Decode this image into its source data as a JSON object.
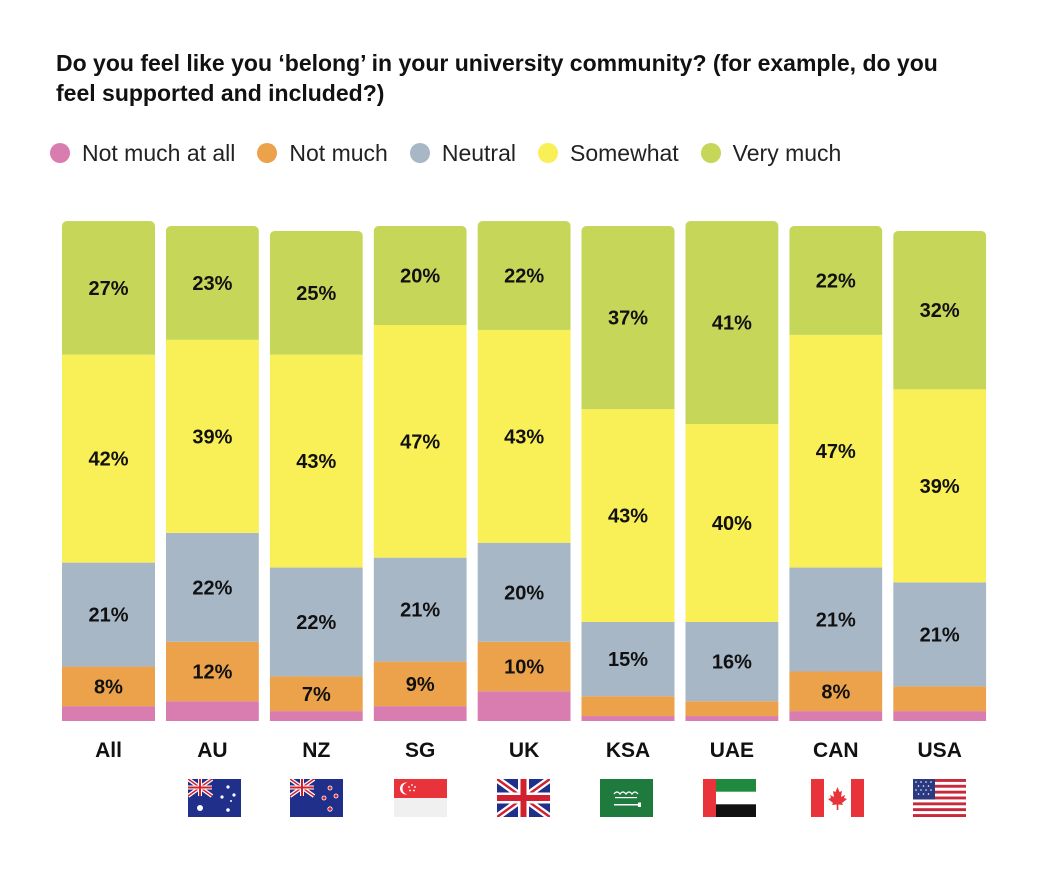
{
  "title": "Do you feel like you ‘belong’ in your university community? (for example, do you feel supported and included?)",
  "chart_data": {
    "type": "bar",
    "stacked": true,
    "title": "Do you feel like you ‘belong’ in your university community? (for example, do you feel supported and included?)",
    "xlabel": "",
    "ylabel": "",
    "ylim": [
      0,
      100
    ],
    "grid": false,
    "legend_position": "top",
    "categories": [
      "All",
      "AU",
      "NZ",
      "SG",
      "UK",
      "KSA",
      "UAE",
      "CAN",
      "USA"
    ],
    "series": [
      {
        "name": "Not much at all",
        "color": "#d97cb0",
        "values": [
          3,
          4,
          2,
          3,
          6,
          1,
          1,
          2,
          2
        ],
        "labels": [
          "",
          "",
          "",
          "",
          "",
          "",
          "",
          "",
          ""
        ]
      },
      {
        "name": "Not much",
        "color": "#eba24a",
        "values": [
          8,
          12,
          7,
          9,
          10,
          4,
          3,
          8,
          5
        ],
        "labels": [
          "8%",
          "12%",
          "7%",
          "9%",
          "10%",
          "",
          "",
          "8%",
          ""
        ]
      },
      {
        "name": "Neutral",
        "color": "#a8b7c6",
        "values": [
          21,
          22,
          22,
          21,
          20,
          15,
          16,
          21,
          21
        ],
        "labels": [
          "21%",
          "22%",
          "22%",
          "21%",
          "20%",
          "15%",
          "16%",
          "21%",
          "21%"
        ]
      },
      {
        "name": "Somewhat",
        "color": "#f9ef57",
        "values": [
          42,
          39,
          43,
          47,
          43,
          43,
          40,
          47,
          39
        ],
        "labels": [
          "42%",
          "39%",
          "43%",
          "47%",
          "43%",
          "43%",
          "40%",
          "47%",
          "39%"
        ]
      },
      {
        "name": "Very much",
        "color": "#c6d659",
        "values": [
          27,
          23,
          25,
          20,
          22,
          37,
          41,
          22,
          32
        ],
        "labels": [
          "27%",
          "23%",
          "25%",
          "20%",
          "22%",
          "37%",
          "41%",
          "22%",
          "32%"
        ]
      }
    ]
  },
  "flags": [
    {
      "category": "AU",
      "icon": "australia-flag-icon"
    },
    {
      "category": "NZ",
      "icon": "new-zealand-flag-icon"
    },
    {
      "category": "SG",
      "icon": "singapore-flag-icon"
    },
    {
      "category": "UK",
      "icon": "united-kingdom-flag-icon"
    },
    {
      "category": "KSA",
      "icon": "saudi-arabia-flag-icon"
    },
    {
      "category": "UAE",
      "icon": "uae-flag-icon"
    },
    {
      "category": "CAN",
      "icon": "canada-flag-icon"
    },
    {
      "category": "USA",
      "icon": "usa-flag-icon"
    }
  ]
}
